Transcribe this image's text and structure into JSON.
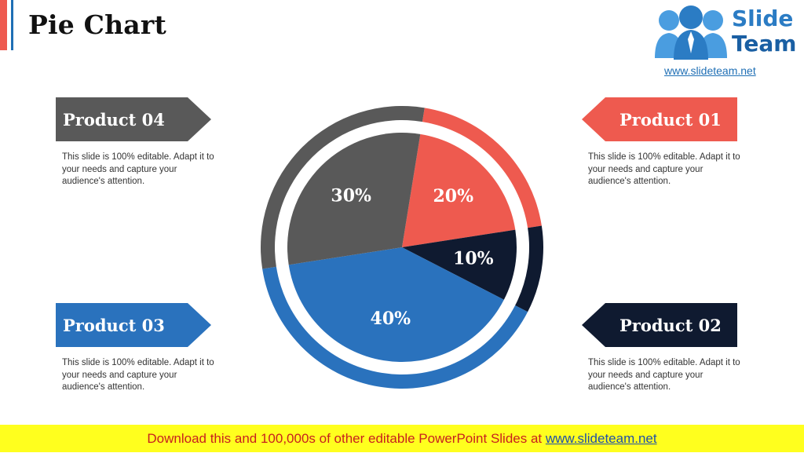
{
  "slide": {
    "title": "Pie Chart"
  },
  "logo": {
    "line1": "Slide",
    "line2": "Team",
    "url": "www.slideteam.net"
  },
  "products": [
    {
      "label": "Product 04",
      "color": "#595959",
      "desc": "This slide is 100% editable. Adapt it to your needs and capture your audience's attention."
    },
    {
      "label": "Product 01",
      "color": "#ee5a4f",
      "desc": "This slide is 100% editable. Adapt it to your needs and capture your audience's attention."
    },
    {
      "label": "Product 03",
      "color": "#2a72bd",
      "desc": "This slide is 100% editable. Adapt it to your needs and capture your audience's attention."
    },
    {
      "label": "Product 02",
      "color": "#0f1a30",
      "desc": "This slide is 100% editable. Adapt it to your needs and capture your audience's attention."
    }
  ],
  "chart_data": {
    "type": "pie",
    "categories": [
      "Product 01",
      "Product 02",
      "Product 03",
      "Product 04"
    ],
    "values": [
      20,
      10,
      40,
      30
    ],
    "labels": [
      "20%",
      "10%",
      "40%",
      "30%"
    ],
    "colors": [
      "#ee5a4f",
      "#0f1a30",
      "#2a72bd",
      "#595959"
    ]
  },
  "footer": {
    "text": "Download this and 100,000s of other editable PowerPoint Slides at ",
    "link": "www.slideteam.net"
  }
}
